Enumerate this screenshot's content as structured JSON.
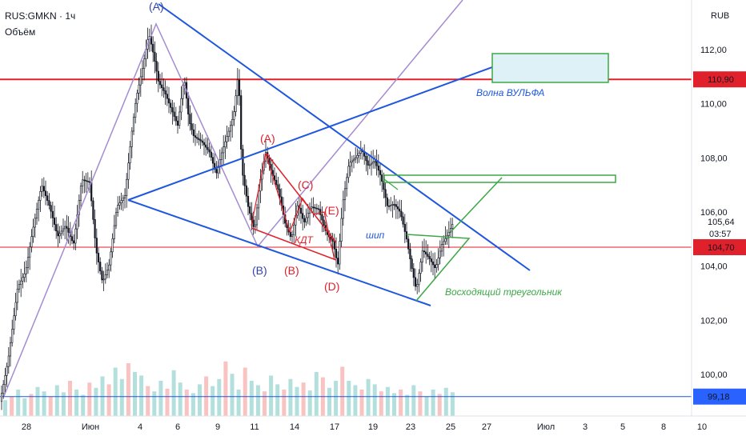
{
  "header": {
    "symbol": "RUS:GMKN · 1ч",
    "indicator": "Объём"
  },
  "currency": "RUB",
  "price_badges": [
    {
      "value": "110,90",
      "price": 110.9,
      "color": "#e0202a"
    },
    {
      "value": "105,64",
      "sub": "03:57",
      "price": 105.64,
      "color": "#ffffff"
    },
    {
      "value": "104,70",
      "price": 104.7,
      "color": "#e0202a"
    },
    {
      "value": "99,18",
      "price": 99.18,
      "color": "#2962ff"
    }
  ],
  "annotations": {
    "wolf_wave": "Волна ВУЛЬФА",
    "kdt": "КДТ",
    "spike": "шип",
    "ascending_triangle": "Восходящий треугольник",
    "wave_A_top": "(A)",
    "wave_A": "(A)",
    "wave_B_blue": "(B)",
    "wave_B": "(B)",
    "wave_C": "(C)",
    "wave_D": "(D)",
    "wave_E": "(E)"
  },
  "colors": {
    "up": "#26a69a",
    "down": "#ef5350",
    "candle": "#131722",
    "trend": "#1e56e0",
    "wave": "#a58bd1",
    "red_line": "#e0202a",
    "green": "#3aa845",
    "wave_red": "#e0202a",
    "wave_blue": "#3344a8"
  },
  "chart_data": {
    "type": "candlestick",
    "y_axis": {
      "ticks": [
        100,
        102,
        104,
        106,
        108,
        110,
        112
      ],
      "tick_labels": [
        "100,00",
        "102,00",
        "104,00",
        "106,00",
        "108,00",
        "110,00",
        "112,00"
      ]
    },
    "x_axis": {
      "tick_labels": [
        "28",
        "Июн",
        "4",
        "6",
        "9",
        "11",
        "14",
        "17",
        "19",
        "23",
        "25",
        "27",
        "Июл",
        "3",
        "5",
        "8",
        "10"
      ]
    },
    "horizontal_levels": [
      110.9,
      104.7,
      99.18
    ],
    "price_path": [
      [
        0,
        99.0
      ],
      [
        10,
        100.5
      ],
      [
        22,
        103.2
      ],
      [
        32,
        103.8
      ],
      [
        40,
        105.2
      ],
      [
        52,
        107.0
      ],
      [
        62,
        106.2
      ],
      [
        72,
        105.1
      ],
      [
        82,
        105.5
      ],
      [
        92,
        104.8
      ],
      [
        102,
        107.2
      ],
      [
        112,
        107.1
      ],
      [
        120,
        104.6
      ],
      [
        128,
        103.4
      ],
      [
        136,
        104.0
      ],
      [
        146,
        106.2
      ],
      [
        156,
        106.6
      ],
      [
        164,
        108.8
      ],
      [
        170,
        110.2
      ],
      [
        178,
        111.3
      ],
      [
        186,
        112.6
      ],
      [
        192,
        111.8
      ],
      [
        198,
        110.8
      ],
      [
        206,
        110.4
      ],
      [
        214,
        109.8
      ],
      [
        222,
        109.2
      ],
      [
        230,
        111.0
      ],
      [
        236,
        109.4
      ],
      [
        242,
        108.8
      ],
      [
        252,
        108.6
      ],
      [
        262,
        108.2
      ],
      [
        270,
        107.4
      ],
      [
        278,
        108.3
      ],
      [
        286,
        109.0
      ],
      [
        292,
        109.6
      ],
      [
        298,
        111.2
      ],
      [
        302,
        107.6
      ],
      [
        310,
        106.2
      ],
      [
        318,
        105.3
      ],
      [
        324,
        107.0
      ],
      [
        332,
        108.2
      ],
      [
        340,
        107.4
      ],
      [
        348,
        106.8
      ],
      [
        356,
        105.6
      ],
      [
        364,
        105.0
      ],
      [
        372,
        106.3
      ],
      [
        380,
        105.6
      ],
      [
        388,
        106.2
      ],
      [
        398,
        106.1
      ],
      [
        408,
        105.2
      ],
      [
        416,
        104.9
      ],
      [
        422,
        104.0
      ],
      [
        428,
        106.3
      ],
      [
        436,
        107.8
      ],
      [
        444,
        108.0
      ],
      [
        452,
        108.3
      ],
      [
        460,
        107.7
      ],
      [
        468,
        107.9
      ],
      [
        476,
        107.3
      ],
      [
        484,
        106.2
      ],
      [
        492,
        106.3
      ],
      [
        500,
        106.0
      ],
      [
        508,
        105.0
      ],
      [
        514,
        104.0
      ],
      [
        520,
        103.1
      ],
      [
        528,
        104.6
      ],
      [
        536,
        104.3
      ],
      [
        544,
        103.9
      ],
      [
        552,
        104.8
      ],
      [
        560,
        105.2
      ],
      [
        566,
        105.6
      ]
    ],
    "volume": [
      0.18,
      0.22,
      0.3,
      0.2,
      0.25,
      0.33,
      0.28,
      0.22,
      0.35,
      0.27,
      0.4,
      0.3,
      0.24,
      0.38,
      0.32,
      0.45,
      0.36,
      0.55,
      0.42,
      0.6,
      0.5,
      0.46,
      0.34,
      0.28,
      0.4,
      0.31,
      0.52,
      0.38,
      0.3,
      0.26,
      0.36,
      0.45,
      0.34,
      0.42,
      0.62,
      0.48,
      0.3,
      0.55,
      0.4,
      0.35,
      0.28,
      0.46,
      0.36,
      0.3,
      0.42,
      0.33,
      0.38,
      0.29,
      0.5,
      0.44,
      0.32,
      0.4,
      0.56,
      0.4,
      0.35,
      0.3,
      0.42,
      0.36,
      0.28,
      0.33,
      0.26,
      0.3,
      0.24,
      0.35,
      0.28,
      0.22,
      0.3,
      0.25,
      0.32,
      0.27
    ]
  }
}
